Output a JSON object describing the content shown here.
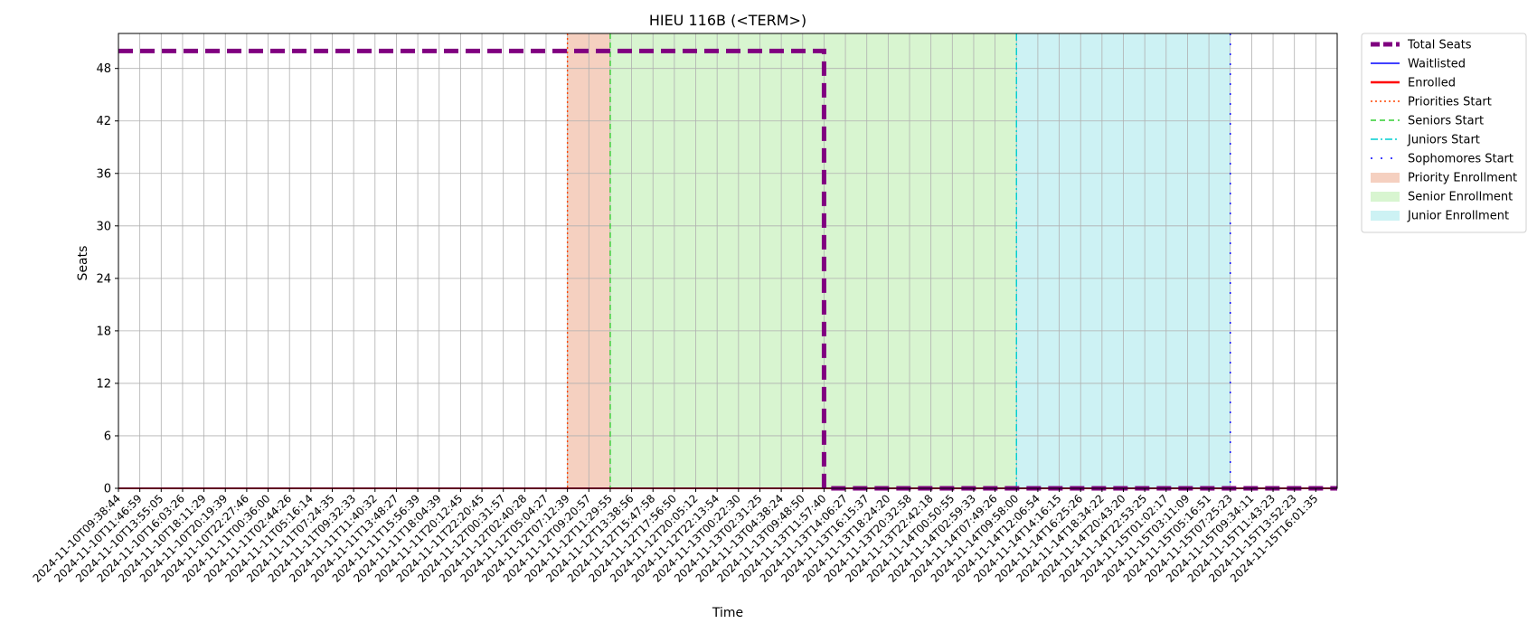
{
  "chart_data": {
    "type": "line",
    "title": "HIEU 116B (<TERM>)",
    "xlabel": "Time",
    "ylabel": "Seats",
    "ylim": [
      0,
      52
    ],
    "yticks": [
      0,
      6,
      12,
      18,
      24,
      30,
      36,
      42,
      48
    ],
    "grid": true,
    "legend_position": "outside-top-right",
    "x": [
      "2024-11-10T09:38:44",
      "2024-11-10T11:46:59",
      "2024-11-10T13:55:05",
      "2024-11-10T16:03:26",
      "2024-11-10T18:11:29",
      "2024-11-10T20:19:39",
      "2024-11-10T22:27:46",
      "2024-11-11T00:36:00",
      "2024-11-11T02:44:26",
      "2024-11-11T05:16:14",
      "2024-11-11T07:24:35",
      "2024-11-11T09:32:33",
      "2024-11-11T11:40:32",
      "2024-11-11T13:48:27",
      "2024-11-11T15:56:39",
      "2024-11-11T18:04:39",
      "2024-11-11T20:12:45",
      "2024-11-11T22:20:45",
      "2024-11-12T00:31:57",
      "2024-11-12T02:40:28",
      "2024-11-12T05:04:27",
      "2024-11-12T07:12:39",
      "2024-11-12T09:20:57",
      "2024-11-12T11:29:55",
      "2024-11-12T13:38:56",
      "2024-11-12T15:47:58",
      "2024-11-12T17:56:50",
      "2024-11-12T20:05:12",
      "2024-11-12T22:13:54",
      "2024-11-13T00:22:30",
      "2024-11-13T02:31:25",
      "2024-11-13T04:38:24",
      "2024-11-13T09:48:50",
      "2024-11-13T11:57:40",
      "2024-11-13T14:06:27",
      "2024-11-13T16:15:37",
      "2024-11-13T18:24:20",
      "2024-11-13T20:32:58",
      "2024-11-13T22:42:18",
      "2024-11-14T00:50:55",
      "2024-11-14T02:59:33",
      "2024-11-14T07:49:26",
      "2024-11-14T09:58:00",
      "2024-11-14T12:06:54",
      "2024-11-14T14:16:15",
      "2024-11-14T16:25:26",
      "2024-11-14T18:34:22",
      "2024-11-14T20:43:20",
      "2024-11-14T22:53:25",
      "2024-11-15T01:02:17",
      "2024-11-15T03:11:09",
      "2024-11-15T05:16:51",
      "2024-11-15T07:25:23",
      "2024-11-15T09:34:11",
      "2024-11-15T11:43:23",
      "2024-11-15T13:52:23",
      "2024-11-15T16:01:35"
    ],
    "series": [
      {
        "name": "Total Seats",
        "color": "#800080",
        "style": "dashed-thick",
        "values": [
          50,
          50,
          50,
          50,
          50,
          50,
          50,
          50,
          50,
          50,
          50,
          50,
          50,
          50,
          50,
          50,
          50,
          50,
          50,
          50,
          50,
          50,
          50,
          50,
          50,
          50,
          50,
          50,
          50,
          50,
          50,
          50,
          50,
          0,
          0,
          0,
          0,
          0,
          0,
          0,
          0,
          0,
          0,
          0,
          0,
          0,
          0,
          0,
          0,
          0,
          0,
          0,
          0,
          0,
          0,
          0,
          0
        ]
      },
      {
        "name": "Waitlisted",
        "color": "#0000ff",
        "style": "solid",
        "values": [
          0,
          0,
          0,
          0,
          0,
          0,
          0,
          0,
          0,
          0,
          0,
          0,
          0,
          0,
          0,
          0,
          0,
          0,
          0,
          0,
          0,
          0,
          0,
          0,
          0,
          0,
          0,
          0,
          0,
          0,
          0,
          0,
          0,
          0,
          0,
          0,
          0,
          0,
          0,
          0,
          0,
          0,
          0,
          0,
          0,
          0,
          0,
          0,
          0,
          0,
          0,
          0,
          0,
          0,
          0,
          0,
          0
        ]
      },
      {
        "name": "Enrolled",
        "color": "#ff0000",
        "style": "solid-thick",
        "values": [
          0,
          0,
          0,
          0,
          0,
          0,
          0,
          0,
          0,
          0,
          0,
          0,
          0,
          0,
          0,
          0,
          0,
          0,
          0,
          0,
          0,
          0,
          0,
          0,
          0,
          0,
          0,
          0,
          0,
          0,
          0,
          0,
          0,
          0,
          0,
          0,
          0,
          0,
          0,
          0,
          0,
          0,
          0,
          0,
          0,
          0,
          0,
          0,
          0,
          0,
          0,
          0,
          0,
          0,
          0,
          0,
          0
        ]
      }
    ],
    "vlines": [
      {
        "name": "Priorities Start",
        "at": "2024-11-12T07:12:39",
        "color": "#ff4500",
        "style": "dotted"
      },
      {
        "name": "Seniors Start",
        "at": "2024-11-12T11:29:55",
        "color": "#32cd32",
        "style": "dashed"
      },
      {
        "name": "Juniors Start",
        "at": "2024-11-14T09:58:00",
        "color": "#00ced1",
        "style": "dashdot"
      },
      {
        "name": "Sophomores Start",
        "at": "2024-11-15T07:25:23",
        "color": "#0000ff",
        "style": "loosely-dotted"
      }
    ],
    "spans": [
      {
        "name": "Priority Enrollment",
        "from": "2024-11-12T07:12:39",
        "to": "2024-11-12T11:29:55",
        "color": "#f5d0c0"
      },
      {
        "name": "Senior Enrollment",
        "from": "2024-11-12T11:29:55",
        "to": "2024-11-14T09:58:00",
        "color": "#d8f5d0"
      },
      {
        "name": "Junior Enrollment",
        "from": "2024-11-14T09:58:00",
        "to": "2024-11-15T07:25:23",
        "color": "#cdf2f4"
      }
    ]
  }
}
